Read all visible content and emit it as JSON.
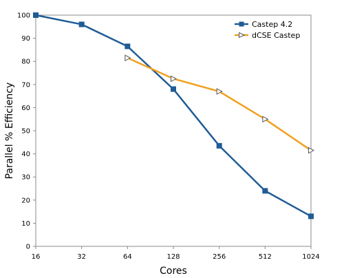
{
  "chart_data": {
    "type": "line",
    "title": "",
    "xlabel": "Cores",
    "ylabel": "Parallel % Efficiency",
    "x_scale": "log2",
    "categories": [
      "16",
      "32",
      "64",
      "128",
      "256",
      "512",
      "1024"
    ],
    "ylim": [
      0,
      100
    ],
    "yticks": [
      0,
      10,
      20,
      30,
      40,
      50,
      60,
      70,
      80,
      90,
      100
    ],
    "grid": false,
    "legend_position": "top-right",
    "series": [
      {
        "name": "Castep 4.2",
        "color": "#1f5c96",
        "marker": "square",
        "x": [
          16,
          32,
          64,
          128,
          256,
          512,
          1024
        ],
        "values": [
          100,
          96,
          86.5,
          68,
          43.5,
          24,
          13
        ]
      },
      {
        "name": "dCSE Castep",
        "color": "#f0a020",
        "marker": "triangle-right",
        "x": [
          64,
          128,
          256,
          512,
          1024
        ],
        "values": [
          81.5,
          72.5,
          67,
          55,
          41.5
        ]
      }
    ]
  }
}
